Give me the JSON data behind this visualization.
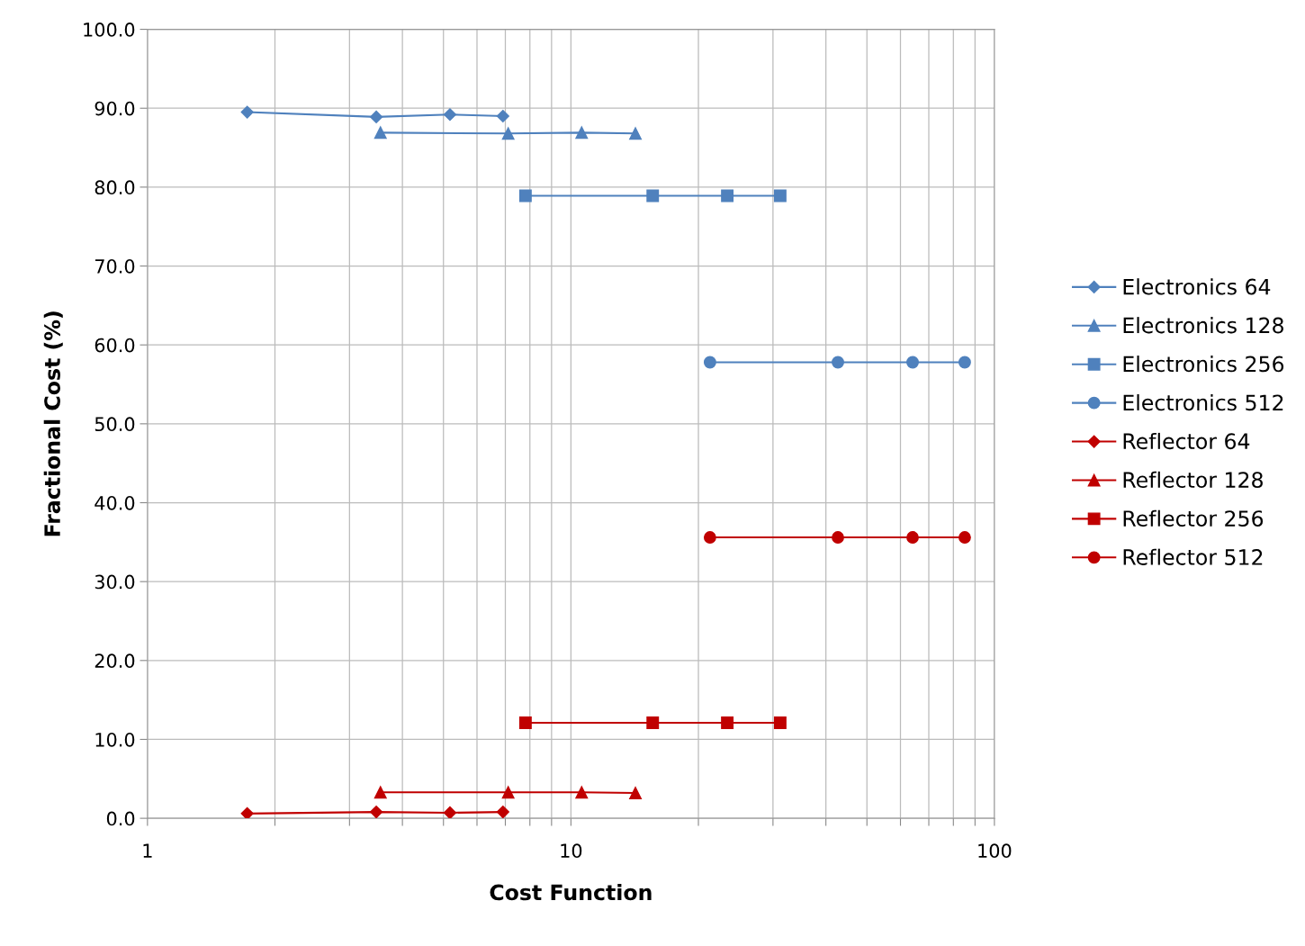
{
  "chart_data": {
    "type": "line",
    "xlabel": "Cost Function",
    "ylabel": "Fractional Cost (%)",
    "log": "x",
    "grid": true,
    "legend": "right",
    "line_style": "solid",
    "xlim": [
      1,
      100
    ],
    "ylim": [
      0,
      100
    ],
    "xticks": [
      1,
      {
        "value": 2,
        "label": null
      },
      {
        "value": 3,
        "label": null
      },
      {
        "value": 4,
        "label": null
      },
      {
        "value": 5,
        "label": null
      },
      {
        "value": 6,
        "label": null
      },
      {
        "value": 7,
        "label": null
      },
      {
        "value": 8,
        "label": null
      },
      {
        "value": 9,
        "label": null
      },
      10,
      {
        "value": 20,
        "label": null
      },
      {
        "value": 30,
        "label": null
      },
      {
        "value": 40,
        "label": null
      },
      {
        "value": 50,
        "label": null
      },
      {
        "value": 60,
        "label": null
      },
      {
        "value": 70,
        "label": null
      },
      {
        "value": 80,
        "label": null
      },
      {
        "value": 90,
        "label": null
      },
      100
    ],
    "yticks": [
      {
        "value": 0,
        "label": "0.0"
      },
      {
        "value": 10,
        "label": "10.0"
      },
      {
        "value": 20,
        "label": "20.0"
      },
      {
        "value": 30,
        "label": "30.0"
      },
      {
        "value": 40,
        "label": "40.0"
      },
      {
        "value": 50,
        "label": "50.0"
      },
      {
        "value": 60,
        "label": "60.0"
      },
      {
        "value": 70,
        "label": "70.0"
      },
      {
        "value": 80,
        "label": "80.0"
      },
      {
        "value": 90,
        "label": "90.0"
      },
      {
        "value": 100,
        "label": "100.0"
      }
    ],
    "series": [
      {
        "name": "Electronics 64",
        "color": "#4f81bd",
        "marker": "diamond",
        "x": [
          1.72,
          3.47,
          5.18,
          6.91
        ],
        "values": [
          89.5,
          88.9,
          89.2,
          89.0
        ]
      },
      {
        "name": "Electronics 128",
        "color": "#4f81bd",
        "marker": "triangle",
        "x": [
          3.55,
          7.11,
          10.6,
          14.2
        ],
        "values": [
          86.9,
          86.8,
          86.9,
          86.8
        ]
      },
      {
        "name": "Electronics 256",
        "color": "#4f81bd",
        "marker": "square",
        "x": [
          7.81,
          15.6,
          23.4,
          31.2
        ],
        "values": [
          78.9,
          78.9,
          78.9,
          78.9
        ]
      },
      {
        "name": "Electronics 512",
        "color": "#4f81bd",
        "marker": "circle",
        "x": [
          21.3,
          42.7,
          64.1,
          85.1
        ],
        "values": [
          57.8,
          57.8,
          57.8,
          57.8
        ]
      },
      {
        "name": "Reflector 64",
        "color": "#c00000",
        "marker": "diamond",
        "x": [
          1.72,
          3.47,
          5.18,
          6.91
        ],
        "values": [
          0.6,
          0.8,
          0.7,
          0.8
        ]
      },
      {
        "name": "Reflector 128",
        "color": "#c00000",
        "marker": "triangle",
        "x": [
          3.55,
          7.11,
          10.6,
          14.2
        ],
        "values": [
          3.3,
          3.3,
          3.3,
          3.2
        ]
      },
      {
        "name": "Reflector 256",
        "color": "#c00000",
        "marker": "square",
        "x": [
          7.81,
          15.6,
          23.4,
          31.2
        ],
        "values": [
          12.1,
          12.1,
          12.1,
          12.1
        ]
      },
      {
        "name": "Reflector 512",
        "color": "#c00000",
        "marker": "circle",
        "x": [
          21.3,
          42.7,
          64.1,
          85.1
        ],
        "values": [
          35.6,
          35.6,
          35.6,
          35.6
        ]
      }
    ]
  }
}
